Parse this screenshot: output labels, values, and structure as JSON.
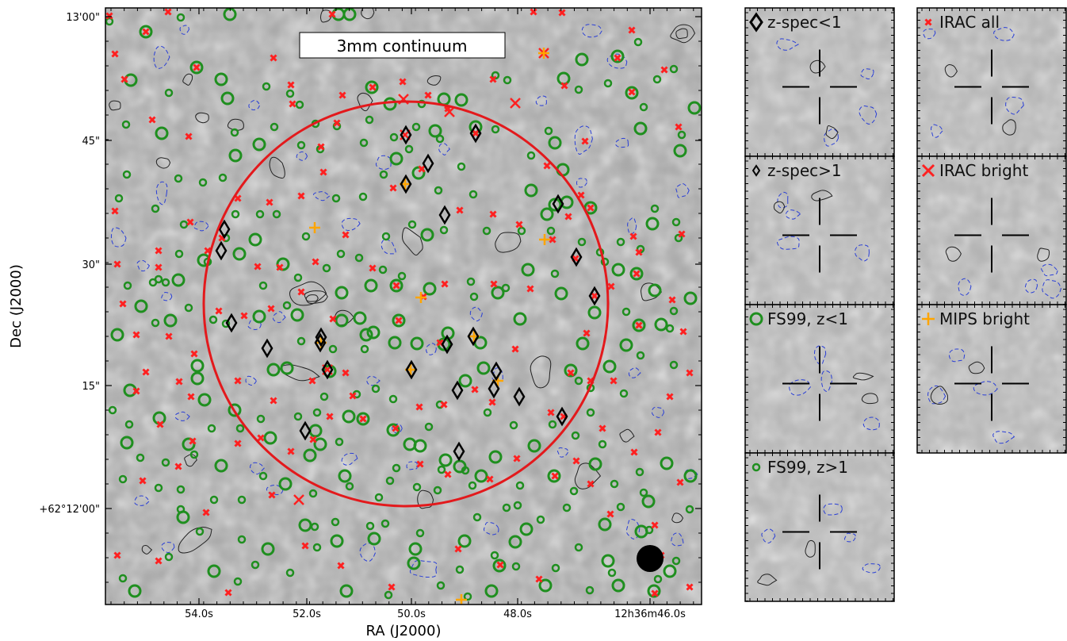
{
  "main_map": {
    "title_box": "3mm continuum",
    "xlabel": "RA (J2000)",
    "ylabel": "Dec (J2000)",
    "x_ticks": [
      "54.0s",
      "52.0s",
      "50.0s",
      "48.0s",
      "12h36m46.0s"
    ],
    "y_ticks": [
      "13'00\"",
      "45\"",
      "30\"",
      "15\"",
      "+62°12'00\""
    ],
    "symbol_colors": {
      "circle": "#1f8f1f",
      "cross_small": "#ff2020",
      "cross_large": "#ff2020",
      "plus": "#ffa500",
      "diamond": "#000000",
      "contour_pos": "#222222",
      "contour_neg": "#2a3fd6",
      "primary_beam": "#e3191c"
    }
  },
  "panels": [
    {
      "label": "z-spec<1",
      "symbol": "diamond-large"
    },
    {
      "label": "IRAC all",
      "symbol": "cross-small"
    },
    {
      "label": "z-spec>1",
      "symbol": "diamond-small"
    },
    {
      "label": "IRAC bright",
      "symbol": "cross-large"
    },
    {
      "label": "FS99, z<1",
      "symbol": "circle-large"
    },
    {
      "label": "MIPS bright",
      "symbol": "plus"
    },
    {
      "label": "FS99, z>1",
      "symbol": "circle-small"
    }
  ]
}
